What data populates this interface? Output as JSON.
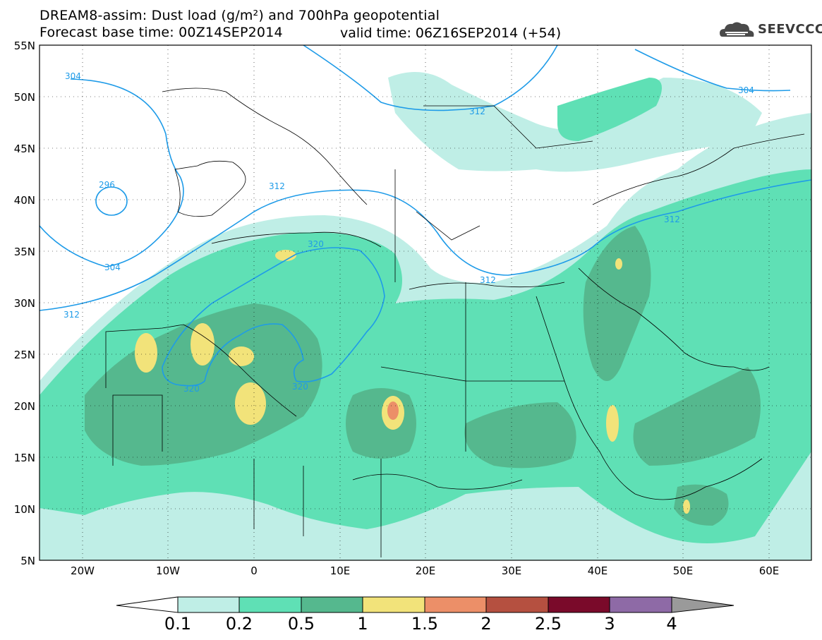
{
  "title": {
    "line1": "DREAM8-assim: Dust load (g/m²) and 700hPa geopotential",
    "line2": "Forecast base time: 00Z14SEP2014",
    "valid": "valid time: 06Z16SEP2014 (+54)"
  },
  "logo": {
    "text": "SEEVCCC",
    "icon": "cloud-logo-icon"
  },
  "axes": {
    "lat_labels": [
      "55N",
      "50N",
      "45N",
      "40N",
      "35N",
      "30N",
      "25N",
      "20N",
      "15N",
      "10N",
      "5N"
    ],
    "lon_labels": [
      "20W",
      "10W",
      "0",
      "10E",
      "20E",
      "30E",
      "40E",
      "50E",
      "60E"
    ]
  },
  "contour_labels": [
    "304",
    "312",
    "296",
    "304",
    "312",
    "320",
    "320",
    "312",
    "320",
    "312",
    "304",
    "312"
  ],
  "colorbar": {
    "ticks": [
      "0.1",
      "0.2",
      "0.5",
      "1",
      "1.5",
      "2",
      "2.5",
      "3",
      "4"
    ],
    "colors": [
      "#ffffff",
      "#bfeee6",
      "#5fe0b5",
      "#55b88e",
      "#f2e37a",
      "#ec8f68",
      "#b55040",
      "#7a0a2a",
      "#8e6aa6",
      "#9a9a9a"
    ]
  },
  "colors": {
    "sea": "#ffffff",
    "dust_low": "#bfeee6",
    "dust_mid": "#5fe0b5",
    "dust_high": "#55b88e",
    "dust_peak": "#f2e37a",
    "dust_extreme": "#ec8f68",
    "contour": "#1e9be8",
    "border": "#000000"
  }
}
